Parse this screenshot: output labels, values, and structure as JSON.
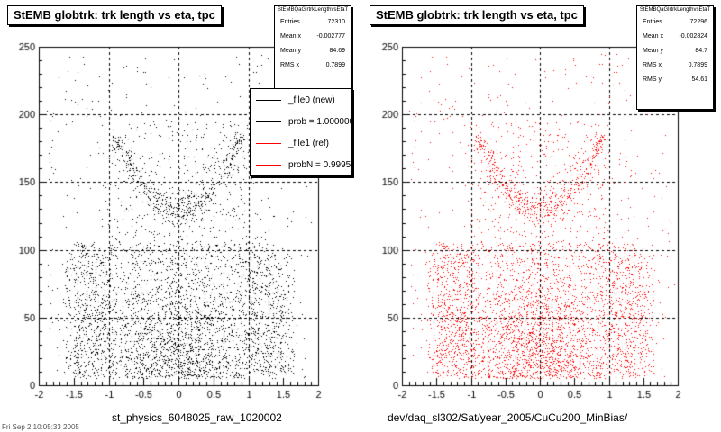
{
  "left_panel": {
    "title": "StEMB globtrk: trk length vs eta, tpc",
    "xtitle": "st_physics_6048025_raw_1020002",
    "stats": {
      "name": "StEMBQaGlrtrkLengthvsEtaT",
      "rows": [
        {
          "label": "Entries",
          "value": "72310"
        },
        {
          "label": "Mean x",
          "value": "-0.002777"
        },
        {
          "label": "Mean y",
          "value": "84.69"
        },
        {
          "label": "RMS x",
          "value": "0.7899"
        }
      ]
    },
    "legend": [
      {
        "label": "_file0 (new)",
        "color": "#000000"
      },
      {
        "label": "prob = 1.000000",
        "color": "#000000"
      },
      {
        "label": "_file1 (ref)",
        "color": "#ff0000"
      },
      {
        "label": "probN = 0.999500",
        "color": "#ff0000"
      }
    ]
  },
  "right_panel": {
    "title": "StEMB globtrk: trk length vs eta, tpc",
    "xtitle": "dev/daq_sl302/Sat/year_2005/CuCu200_MinBias/",
    "stats": {
      "name": "StEMBQaGlrtrkLengthvsEtaT",
      "rows": [
        {
          "label": "Entries",
          "value": "72296"
        },
        {
          "label": "Mean x",
          "value": "-0.002824"
        },
        {
          "label": "Mean y",
          "value": "84.7"
        },
        {
          "label": "RMS x",
          "value": "0.7899"
        },
        {
          "label": "RMS y",
          "value": "54.61"
        }
      ]
    }
  },
  "footer_text": "Fri Sep  2 10:05:33 2005",
  "chart_data": [
    {
      "type": "scatter",
      "title": "StEMB globtrk: trk length vs eta, tpc",
      "xlabel": "st_physics_6048025_raw_1020002",
      "ylabel": "",
      "xlim": [
        -2,
        2
      ],
      "ylim": [
        0,
        250
      ],
      "xticks": [
        -2,
        -1.5,
        -1,
        -0.5,
        0,
        0.5,
        1,
        1.5,
        2
      ],
      "yticks": [
        0,
        50,
        100,
        150,
        200,
        250
      ],
      "grid": true,
      "series": [
        {
          "name": "_file0 (new)",
          "color": "#000000",
          "entries": 72310,
          "mean_x": -0.002777,
          "mean_y": 84.69,
          "rms_x": 0.7899
        }
      ],
      "density_regions": [
        {
          "eta_range": [
            -1.7,
            1.7
          ],
          "length_range": [
            5,
            100
          ],
          "density": "medium"
        },
        {
          "eta_range": [
            -1.0,
            1.0
          ],
          "length_range": [
            100,
            200
          ],
          "density": "medium"
        },
        {
          "eta_range": [
            -0.6,
            0.6
          ],
          "length_range": [
            125,
            160
          ],
          "density": "high"
        },
        {
          "eta_range": [
            -1.0,
            -0.6
          ],
          "length_range": [
            150,
            185
          ],
          "density": "high"
        },
        {
          "eta_range": [
            0.6,
            1.0
          ],
          "length_range": [
            150,
            185
          ],
          "density": "high"
        },
        {
          "eta_range": [
            -0.6,
            0.6
          ],
          "length_range": [
            5,
            60
          ],
          "density": "high"
        }
      ],
      "legend_position": "top-right"
    },
    {
      "type": "scatter",
      "title": "StEMB globtrk: trk length vs eta, tpc",
      "xlabel": "dev/daq_sl302/Sat/year_2005/CuCu200_MinBias/",
      "ylabel": "",
      "xlim": [
        -2,
        2
      ],
      "ylim": [
        0,
        250
      ],
      "xticks": [
        -2,
        -1.5,
        -1,
        -0.5,
        0,
        0.5,
        1,
        1.5,
        2
      ],
      "yticks": [
        0,
        50,
        100,
        150,
        200,
        250
      ],
      "grid": true,
      "series": [
        {
          "name": "_file1 (ref)",
          "color": "#ff0000",
          "entries": 72296,
          "mean_x": -0.002824,
          "mean_y": 84.7,
          "rms_x": 0.7899,
          "rms_y": 54.61
        }
      ],
      "density_regions": [
        {
          "eta_range": [
            -1.7,
            1.7
          ],
          "length_range": [
            5,
            100
          ],
          "density": "medium"
        },
        {
          "eta_range": [
            -1.0,
            1.0
          ],
          "length_range": [
            100,
            200
          ],
          "density": "medium"
        },
        {
          "eta_range": [
            -0.6,
            0.6
          ],
          "length_range": [
            125,
            160
          ],
          "density": "high"
        },
        {
          "eta_range": [
            -1.0,
            -0.6
          ],
          "length_range": [
            150,
            185
          ],
          "density": "high"
        },
        {
          "eta_range": [
            0.6,
            1.0
          ],
          "length_range": [
            150,
            185
          ],
          "density": "high"
        },
        {
          "eta_range": [
            -0.6,
            0.6
          ],
          "length_range": [
            5,
            60
          ],
          "density": "high"
        }
      ],
      "legend_position": "top-right"
    }
  ]
}
